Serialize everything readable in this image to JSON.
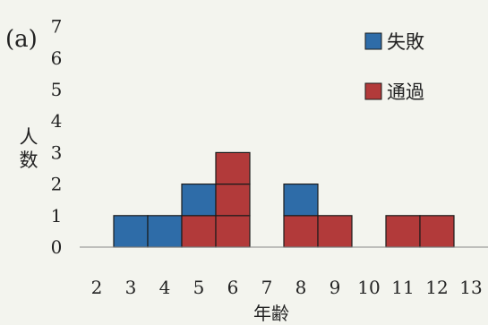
{
  "panel_label": "(a)",
  "chart_data": {
    "type": "bar",
    "stacked": true,
    "xlabel": "年齢",
    "ylabel": "人数",
    "x_ticks": [
      "2",
      "3",
      "4",
      "5",
      "6",
      "7",
      "8",
      "9",
      "10",
      "11",
      "12",
      "13"
    ],
    "y_ticks": [
      "0",
      "1",
      "2",
      "3",
      "4",
      "5",
      "6",
      "7"
    ],
    "ylim": [
      0,
      7
    ],
    "grid": false,
    "legend_position": "top-right",
    "bins": [
      {
        "age": 3,
        "series": "失敗",
        "value": 1
      },
      {
        "age": 4,
        "series": "失敗",
        "value": 1
      },
      {
        "age": 5,
        "series": "通過",
        "value": 1
      },
      {
        "age": 5,
        "series": "失敗",
        "value": 1
      },
      {
        "age": 6,
        "series": "通過",
        "value": 3
      },
      {
        "age": 8,
        "series": "通過",
        "value": 1
      },
      {
        "age": 8,
        "series": "失敗",
        "value": 1
      },
      {
        "age": 9,
        "series": "通過",
        "value": 1
      },
      {
        "age": 11,
        "series": "通過",
        "value": 1
      },
      {
        "age": 12,
        "series": "通過",
        "value": 1
      }
    ],
    "series": [
      {
        "name": "失敗",
        "color": "#2e6ca8"
      },
      {
        "name": "通過",
        "color": "#b23a3a"
      }
    ]
  }
}
